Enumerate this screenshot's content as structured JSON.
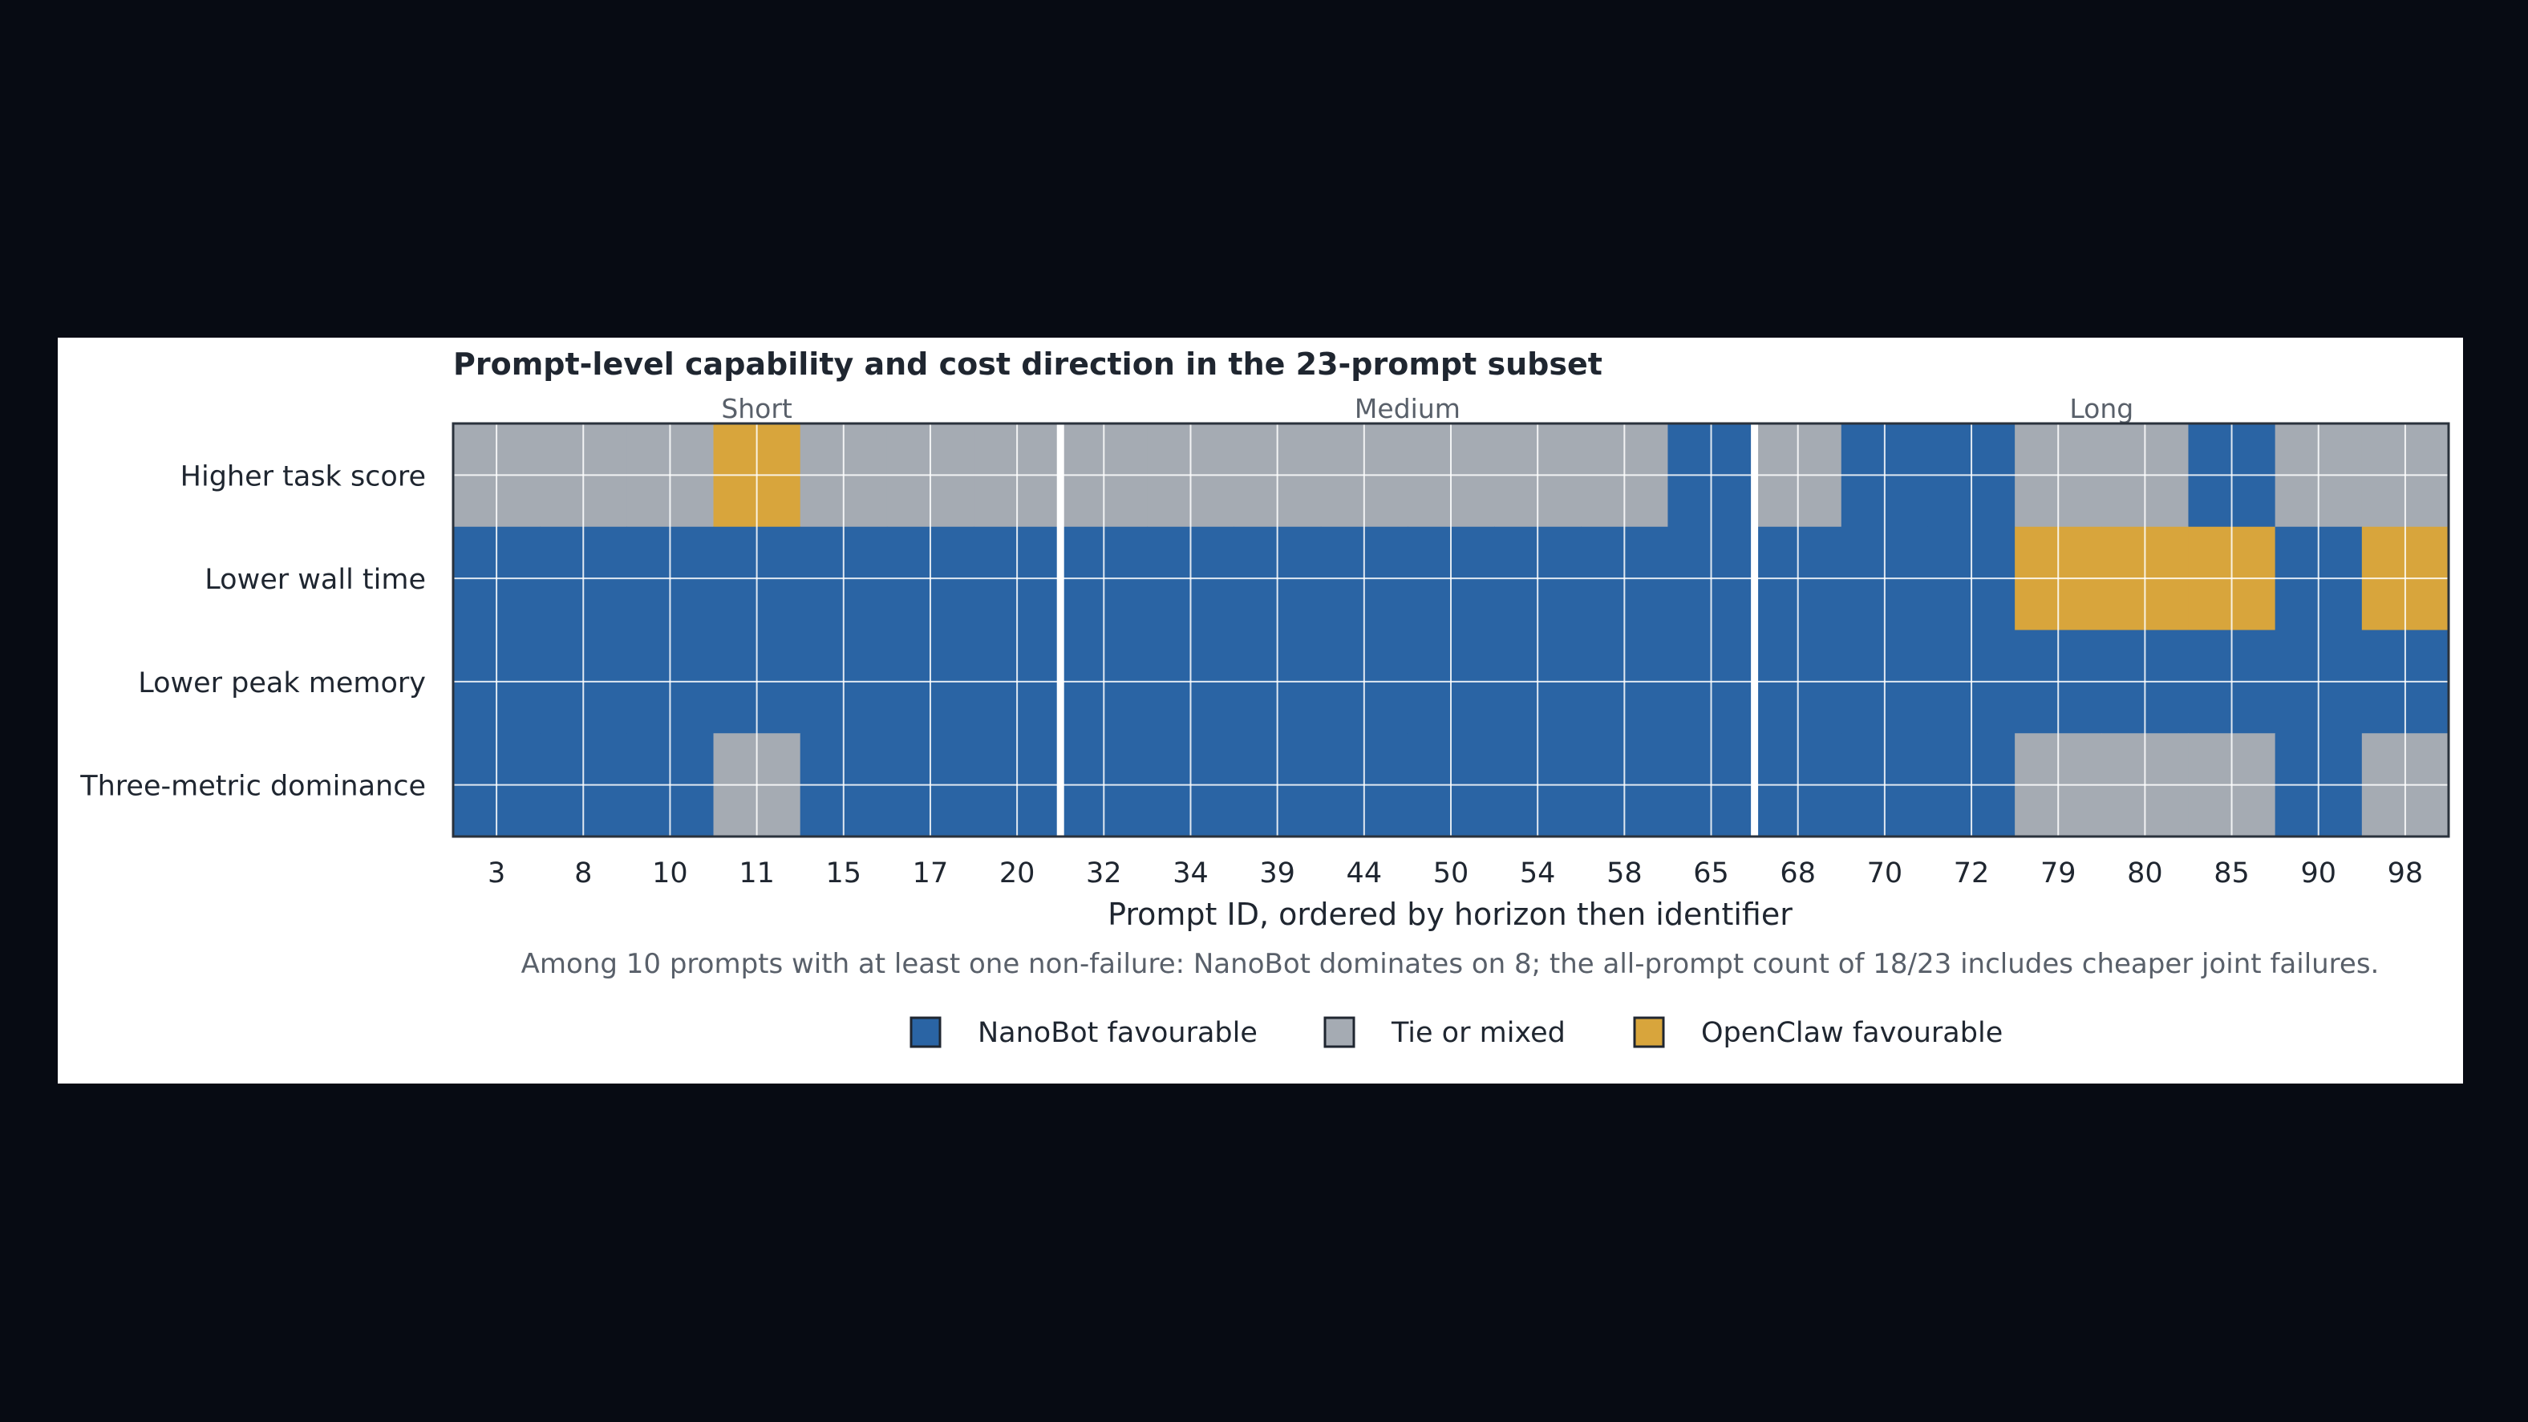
{
  "chart_data": {
    "type": "heatmap",
    "title": "Prompt-level capability and cost direction in the 23-prompt subset",
    "xlabel": "Prompt ID, ordered by horizon then identifier",
    "ylabel": "",
    "note": "Among 10 prompts with at least one non-failure: NanoBot dominates on 8; the all-prompt count of 18/23 includes cheaper joint failures.",
    "prompt_ids": [
      "3",
      "8",
      "10",
      "11",
      "15",
      "17",
      "20",
      "32",
      "34",
      "39",
      "44",
      "50",
      "54",
      "58",
      "65",
      "68",
      "70",
      "72",
      "79",
      "80",
      "85",
      "90",
      "98"
    ],
    "groups": [
      {
        "name": "Short",
        "count": 7
      },
      {
        "name": "Medium",
        "count": 8
      },
      {
        "name": "Long",
        "count": 8
      }
    ],
    "rows": [
      {
        "label": "Higher task score",
        "values": [
          "T",
          "T",
          "T",
          "O",
          "T",
          "T",
          "T",
          "T",
          "T",
          "T",
          "T",
          "T",
          "T",
          "T",
          "N",
          "T",
          "N",
          "N",
          "T",
          "T",
          "N",
          "T",
          "T"
        ]
      },
      {
        "label": "Lower wall time",
        "values": [
          "N",
          "N",
          "N",
          "N",
          "N",
          "N",
          "N",
          "N",
          "N",
          "N",
          "N",
          "N",
          "N",
          "N",
          "N",
          "N",
          "N",
          "N",
          "O",
          "O",
          "O",
          "N",
          "O"
        ]
      },
      {
        "label": "Lower peak memory",
        "values": [
          "N",
          "N",
          "N",
          "N",
          "N",
          "N",
          "N",
          "N",
          "N",
          "N",
          "N",
          "N",
          "N",
          "N",
          "N",
          "N",
          "N",
          "N",
          "N",
          "N",
          "N",
          "N",
          "N"
        ]
      },
      {
        "label": "Three-metric dominance",
        "values": [
          "N",
          "N",
          "N",
          "T",
          "N",
          "N",
          "N",
          "N",
          "N",
          "N",
          "N",
          "N",
          "N",
          "N",
          "N",
          "N",
          "N",
          "N",
          "T",
          "T",
          "T",
          "N",
          "T"
        ]
      }
    ],
    "categories": [
      {
        "code": "N",
        "name": "NanoBot favourable",
        "color": "#2a64a4"
      },
      {
        "code": "T",
        "name": "Tie or mixed",
        "color": "#a5abb3"
      },
      {
        "code": "O",
        "name": "OpenClaw favourable",
        "color": "#d8a53c"
      }
    ],
    "legend_position": "bottom-center",
    "grid": true
  }
}
